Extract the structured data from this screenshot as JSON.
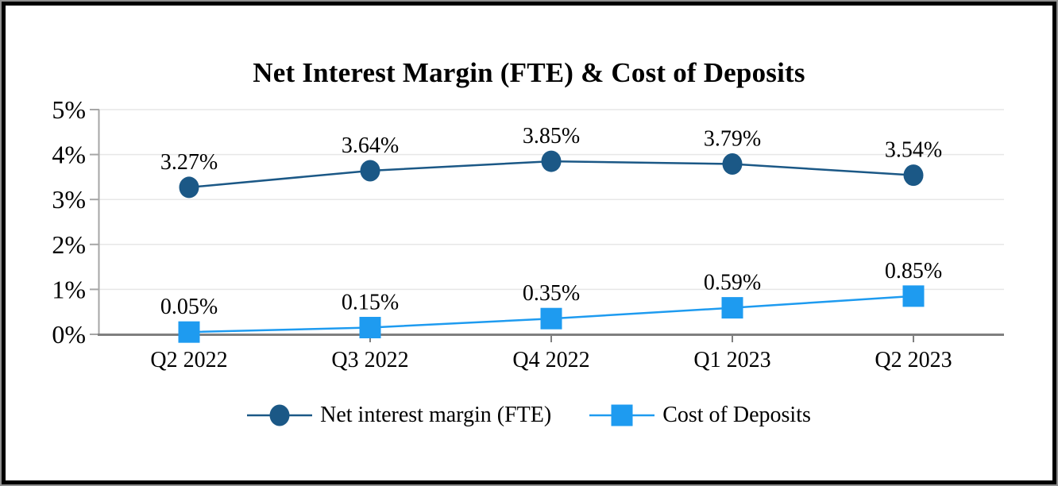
{
  "chart_data": {
    "type": "line",
    "title": "Net Interest Margin (FTE) & Cost of Deposits",
    "categories": [
      "Q2 2022",
      "Q3 2022",
      "Q4 2022",
      "Q1 2023",
      "Q2 2023"
    ],
    "series": [
      {
        "name": "Net interest margin (FTE)",
        "marker": "circle",
        "color": "#1B5886",
        "values": [
          3.27,
          3.64,
          3.85,
          3.79,
          3.54
        ],
        "data_labels": [
          "3.27%",
          "3.64%",
          "3.85%",
          "3.79%",
          "3.54%"
        ]
      },
      {
        "name": "Cost of Deposits",
        "marker": "square",
        "color": "#1E9BF0",
        "values": [
          0.05,
          0.15,
          0.35,
          0.59,
          0.85
        ],
        "data_labels": [
          "0.05%",
          "0.15%",
          "0.35%",
          "0.59%",
          "0.85%"
        ]
      }
    ],
    "y_axis": {
      "min": 0,
      "max": 5,
      "ticks": [
        {
          "value": 5,
          "label": "5%"
        },
        {
          "value": 4,
          "label": "4%"
        },
        {
          "value": 3,
          "label": "3%"
        },
        {
          "value": 2,
          "label": "2%"
        },
        {
          "value": 1,
          "label": "1%"
        },
        {
          "value": 0,
          "label": "0%"
        }
      ]
    },
    "grid": true,
    "legend_position": "bottom",
    "axis_colors": {
      "gridline": "#E7E7E7",
      "y_axis_line": "#A6A6A6",
      "x_axis_line": "#7F7F7F",
      "text": "#000000"
    }
  }
}
